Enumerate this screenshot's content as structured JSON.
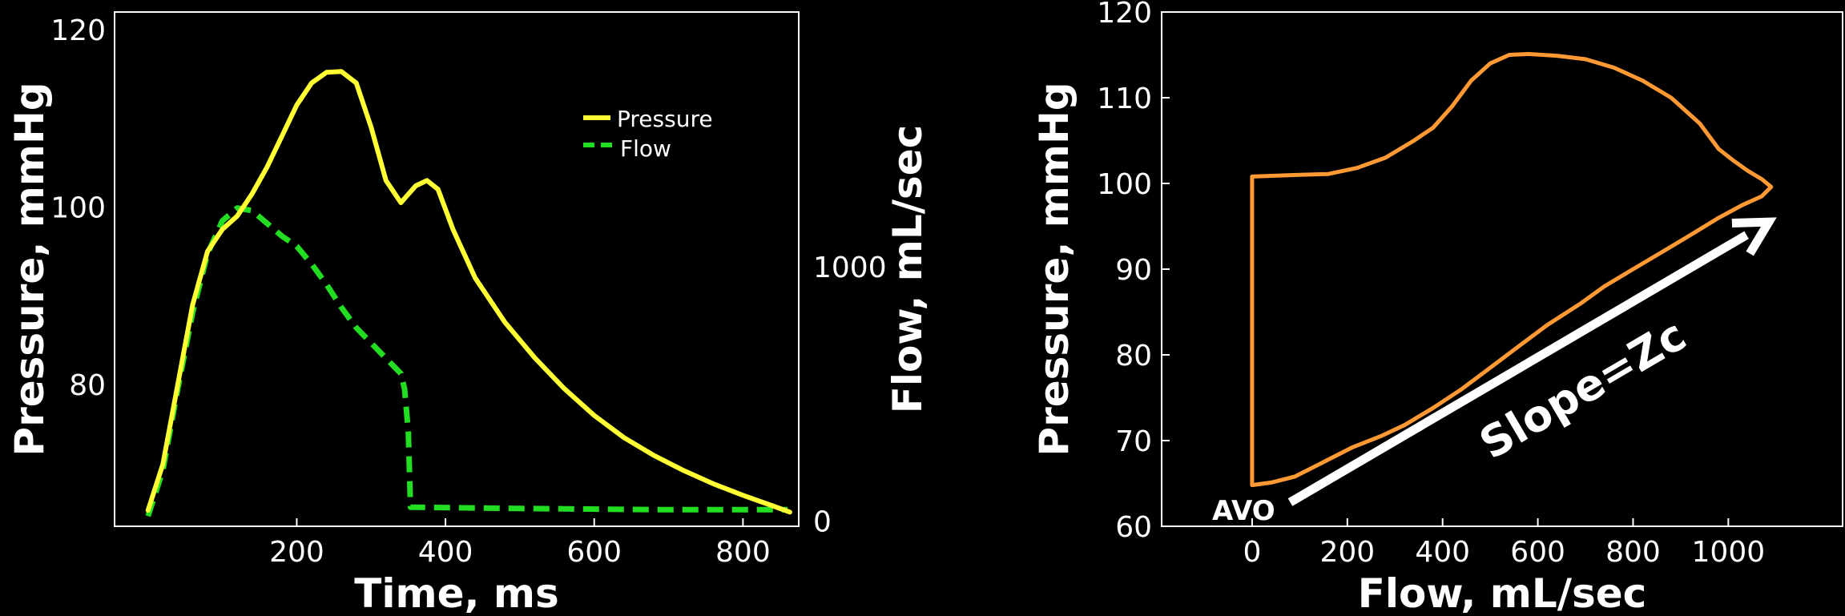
{
  "chart_data": [
    {
      "type": "line",
      "xlabel": "Time, ms",
      "ylabel": "Pressure, mmHg",
      "y2label": "Flow, mL/sec",
      "xlim": [
        -45,
        875
      ],
      "ylim": [
        64,
        122
      ],
      "y2lim": [
        -20,
        2000
      ],
      "xticks": [
        200,
        400,
        600,
        800
      ],
      "yticks": [
        80,
        100,
        120
      ],
      "y2ticks": [
        0,
        1000
      ],
      "grid": false,
      "legend": {
        "position": "top-right",
        "entries": [
          "Pressure",
          "Flow"
        ]
      },
      "series": [
        {
          "name": "Pressure",
          "axis": "left",
          "color": "#ffff33",
          "style": "solid",
          "points": [
            [
              0,
              65.8
            ],
            [
              20,
              71
            ],
            [
              40,
              80
            ],
            [
              60,
              89
            ],
            [
              80,
              95
            ],
            [
              100,
              97.5
            ],
            [
              120,
              99
            ],
            [
              140,
              101.5
            ],
            [
              160,
              104.5
            ],
            [
              180,
              108
            ],
            [
              200,
              111.5
            ],
            [
              220,
              114
            ],
            [
              240,
              115.2
            ],
            [
              260,
              115.3
            ],
            [
              280,
              114
            ],
            [
              300,
              109
            ],
            [
              320,
              103
            ],
            [
              340,
              100.5
            ],
            [
              360,
              102.4
            ],
            [
              375,
              103
            ],
            [
              390,
              102
            ],
            [
              410,
              97.5
            ],
            [
              440,
              92
            ],
            [
              480,
              87
            ],
            [
              520,
              83
            ],
            [
              560,
              79.5
            ],
            [
              600,
              76.5
            ],
            [
              640,
              74
            ],
            [
              680,
              72
            ],
            [
              720,
              70.3
            ],
            [
              760,
              68.8
            ],
            [
              800,
              67.5
            ],
            [
              840,
              66.3
            ],
            [
              863,
              65.6
            ]
          ]
        },
        {
          "name": "Flow",
          "axis": "right",
          "color": "#22dd22",
          "style": "dashed",
          "points": [
            [
              0,
              20
            ],
            [
              20,
              200
            ],
            [
              40,
              520
            ],
            [
              60,
              820
            ],
            [
              80,
              1050
            ],
            [
              100,
              1180
            ],
            [
              120,
              1230
            ],
            [
              140,
              1220
            ],
            [
              160,
              1170
            ],
            [
              180,
              1120
            ],
            [
              200,
              1080
            ],
            [
              220,
              1010
            ],
            [
              240,
              930
            ],
            [
              260,
              840
            ],
            [
              280,
              760
            ],
            [
              300,
              700
            ],
            [
              320,
              640
            ],
            [
              340,
              580
            ],
            [
              345,
              520
            ],
            [
              350,
              350
            ],
            [
              353,
              55
            ],
            [
              360,
              55
            ],
            [
              500,
              50
            ],
            [
              700,
              45
            ],
            [
              860,
              45
            ]
          ]
        }
      ]
    },
    {
      "type": "line",
      "xlabel": "Flow, mL/sec",
      "ylabel": "Pressure, mmHg",
      "xlim": [
        -190,
        1240
      ],
      "ylim": [
        60,
        120
      ],
      "xticks": [
        0,
        200,
        400,
        600,
        800,
        1000
      ],
      "yticks": [
        60,
        70,
        80,
        90,
        100,
        110,
        120
      ],
      "grid": false,
      "series": [
        {
          "name": "",
          "color": "#ff9933",
          "style": "solid",
          "points": [
            [
              0,
              64.8
            ],
            [
              0,
              100.8
            ],
            [
              100,
              101
            ],
            [
              160,
              101.1
            ],
            [
              220,
              101.8
            ],
            [
              280,
              103
            ],
            [
              340,
              105
            ],
            [
              380,
              106.5
            ],
            [
              420,
              109
            ],
            [
              460,
              112
            ],
            [
              500,
              114
            ],
            [
              540,
              115
            ],
            [
              580,
              115.1
            ],
            [
              640,
              114.9
            ],
            [
              700,
              114.5
            ],
            [
              760,
              113.5
            ],
            [
              820,
              112
            ],
            [
              880,
              110
            ],
            [
              940,
              107
            ],
            [
              980,
              104
            ],
            [
              1010,
              102.7
            ],
            [
              1040,
              101.5
            ],
            [
              1070,
              100.5
            ],
            [
              1090,
              99.6
            ],
            [
              1070,
              98.5
            ],
            [
              1030,
              97.5
            ],
            [
              980,
              96
            ],
            [
              930,
              94.3
            ],
            [
              870,
              92.3
            ],
            [
              800,
              90
            ],
            [
              740,
              88
            ],
            [
              690,
              86
            ],
            [
              620,
              83.5
            ],
            [
              560,
              81
            ],
            [
              500,
              78.5
            ],
            [
              440,
              76
            ],
            [
              380,
              73.8
            ],
            [
              320,
              71.8
            ],
            [
              270,
              70.5
            ],
            [
              210,
              69.2
            ],
            [
              150,
              67.5
            ],
            [
              90,
              65.8
            ],
            [
              40,
              65.1
            ],
            [
              0,
              64.8
            ]
          ]
        }
      ],
      "annotations": {
        "arrow_from": [
          80,
          62.8
        ],
        "arrow_to": [
          1085,
          95.5
        ],
        "arrow_label": "Slope=Zc",
        "marker_label": "AVO"
      }
    }
  ]
}
